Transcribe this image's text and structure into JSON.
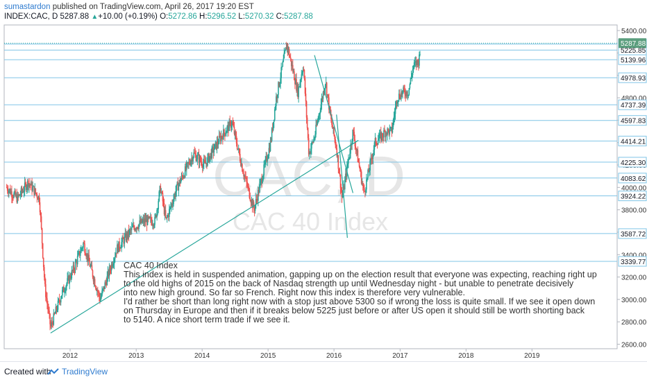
{
  "header": {
    "username": "sumastardon",
    "published_text": "published on TradingView.com, April 26, 2017 19:20 EST",
    "symbol": "INDEX:CAC, D",
    "last": "5287.88",
    "change": "+10.00 (+0.19%)",
    "open_label": "O:",
    "open": "5272.86",
    "high_label": "H:",
    "high": "5296.52",
    "low_label": "L:",
    "low": "5270.32",
    "close_label": "C:",
    "close": "5287.88"
  },
  "watermark": {
    "symbol": "CAC, D",
    "name": "CAC 40 Index"
  },
  "annotation": {
    "lines": [
      "CAC 40 Index",
      "This index is held in suspended animation, gapping up on the election result that everyone was expecting, reaching right up",
      "to the old highs of 2015 on the back of Nasdaq strength up until Wednesday night - but unable to penetrate decisively",
      "into new high ground. So far so French. Right now this index is therefore very vulnerable.",
      "I'd rather be short than long right now with a stop just above  5300 so if wrong the loss is quite small. If we see it open down",
      "on Thursday in Europe and then if it breaks below 5225 just before or after US open it should still be worth shorting back",
      "to 5140. A nice short term trade if we see it."
    ]
  },
  "footer": {
    "created_with": "Created with",
    "brand": "TradingView"
  },
  "colors": {
    "up": "#26a69a",
    "down": "#ef5350",
    "level_line": "#7fc4e6",
    "trendline": "#26a69a",
    "axis_text": "#333333",
    "watermark": "#e6e6e6",
    "last_price_badge": "#5b9e7e"
  },
  "chart_data": {
    "type": "candlestick",
    "title": "INDEX:CAC, D",
    "x_ticks": [
      "2012",
      "2013",
      "2014",
      "2015",
      "2016",
      "2017",
      "2018",
      "2019"
    ],
    "y_ticks": [
      2600,
      2800,
      3000,
      3200,
      3400,
      3600,
      3800,
      4000,
      4200,
      4400,
      4600,
      4800,
      5000,
      5200,
      5400
    ],
    "ylim": [
      2560,
      5450
    ],
    "horizontal_levels": [
      5279.52,
      5225.85,
      5139.96,
      4978.93,
      4737.39,
      4597.83,
      4414.21,
      4225.3,
      4083.62,
      3924.22,
      3587.72,
      3339.77
    ],
    "last_price": 5287.88,
    "price_path": [
      {
        "date": "2011-01",
        "price": 4000
      },
      {
        "date": "2011-03",
        "price": 3900
      },
      {
        "date": "2011-05",
        "price": 4050
      },
      {
        "date": "2011-07",
        "price": 3900
      },
      {
        "date": "2011-08",
        "price": 3100
      },
      {
        "date": "2011-09",
        "price": 2750
      },
      {
        "date": "2011-11",
        "price": 3050
      },
      {
        "date": "2012-01",
        "price": 3250
      },
      {
        "date": "2012-03",
        "price": 3500
      },
      {
        "date": "2012-06",
        "price": 3000
      },
      {
        "date": "2012-09",
        "price": 3450
      },
      {
        "date": "2012-12",
        "price": 3640
      },
      {
        "date": "2013-02",
        "price": 3700
      },
      {
        "date": "2013-04",
        "price": 3700
      },
      {
        "date": "2013-05",
        "price": 4000
      },
      {
        "date": "2013-06",
        "price": 3700
      },
      {
        "date": "2013-08",
        "price": 4000
      },
      {
        "date": "2013-11",
        "price": 4300
      },
      {
        "date": "2014-01",
        "price": 4200
      },
      {
        "date": "2014-04",
        "price": 4450
      },
      {
        "date": "2014-06",
        "price": 4580
      },
      {
        "date": "2014-08",
        "price": 4150
      },
      {
        "date": "2014-10",
        "price": 3800
      },
      {
        "date": "2014-12",
        "price": 4200
      },
      {
        "date": "2015-01",
        "price": 4400
      },
      {
        "date": "2015-02",
        "price": 4800
      },
      {
        "date": "2015-04",
        "price": 5280
      },
      {
        "date": "2015-06",
        "price": 4850
      },
      {
        "date": "2015-07",
        "price": 5100
      },
      {
        "date": "2015-08",
        "price": 4300
      },
      {
        "date": "2015-09",
        "price": 4450
      },
      {
        "date": "2015-11",
        "price": 4950
      },
      {
        "date": "2015-12",
        "price": 4600
      },
      {
        "date": "2016-01",
        "price": 4350
      },
      {
        "date": "2016-02",
        "price": 3900
      },
      {
        "date": "2016-04",
        "price": 4500
      },
      {
        "date": "2016-06",
        "price": 3950
      },
      {
        "date": "2016-08",
        "price": 4400
      },
      {
        "date": "2016-10",
        "price": 4500
      },
      {
        "date": "2016-11",
        "price": 4500
      },
      {
        "date": "2016-12",
        "price": 4800
      },
      {
        "date": "2017-01",
        "price": 4850
      },
      {
        "date": "2017-02",
        "price": 4850
      },
      {
        "date": "2017-03",
        "price": 5080
      },
      {
        "date": "2017-04",
        "price": 5130
      },
      {
        "date": "2017-04-24",
        "price": 5287.88
      }
    ],
    "trendlines": [
      {
        "from": {
          "date": "2011-09",
          "price": 2700
        },
        "to": {
          "date": "2016-05",
          "price": 4420
        }
      },
      {
        "from": {
          "date": "2015-09",
          "price": 5180
        },
        "to": {
          "date": "2016-04",
          "price": 3950
        }
      },
      {
        "from": {
          "date": "2016-01",
          "price": 4650
        },
        "to": {
          "date": "2016-03",
          "price": 3550
        }
      }
    ]
  }
}
